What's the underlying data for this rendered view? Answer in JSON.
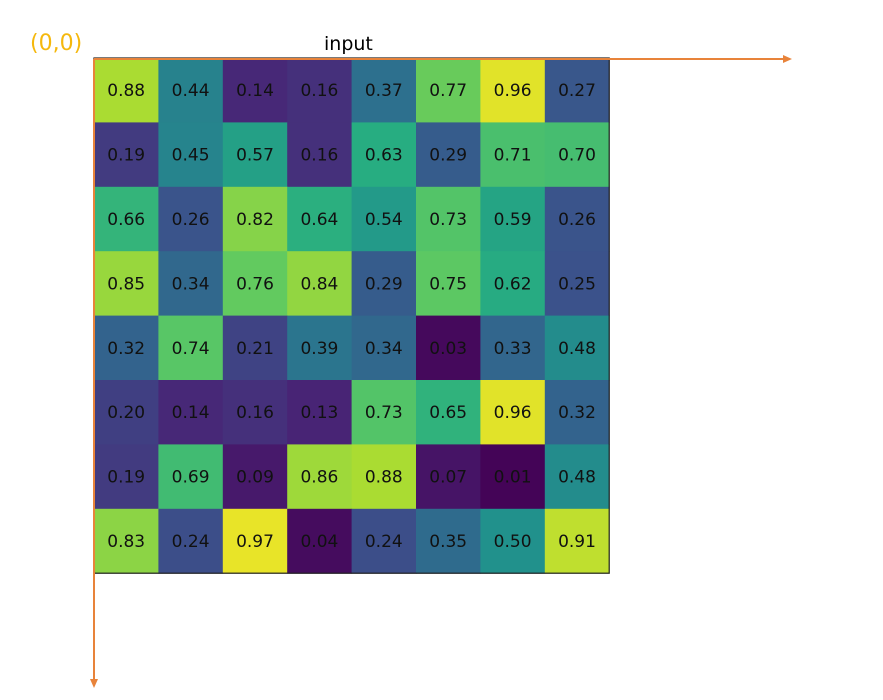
{
  "origin_label": "(0,0)",
  "chart_data": {
    "type": "heatmap",
    "title": "input",
    "rows": 8,
    "cols": 8,
    "colormap": "viridis",
    "value_range": [
      0,
      1
    ],
    "values": [
      [
        0.88,
        0.44,
        0.14,
        0.16,
        0.37,
        0.77,
        0.96,
        0.27
      ],
      [
        0.19,
        0.45,
        0.57,
        0.16,
        0.63,
        0.29,
        0.71,
        0.7
      ],
      [
        0.66,
        0.26,
        0.82,
        0.64,
        0.54,
        0.73,
        0.59,
        0.26
      ],
      [
        0.85,
        0.34,
        0.76,
        0.84,
        0.29,
        0.75,
        0.62,
        0.25
      ],
      [
        0.32,
        0.74,
        0.21,
        0.39,
        0.34,
        0.03,
        0.33,
        0.48
      ],
      [
        0.2,
        0.14,
        0.16,
        0.13,
        0.73,
        0.65,
        0.96,
        0.32
      ],
      [
        0.19,
        0.69,
        0.09,
        0.86,
        0.88,
        0.07,
        0.01,
        0.48
      ],
      [
        0.83,
        0.24,
        0.97,
        0.04,
        0.24,
        0.35,
        0.5,
        0.91
      ]
    ],
    "value_format": "2-decimals"
  },
  "colors": {
    "axis_arrow": "#e8833a",
    "origin_label": "#f5b80d",
    "cell_border": "#222222"
  }
}
